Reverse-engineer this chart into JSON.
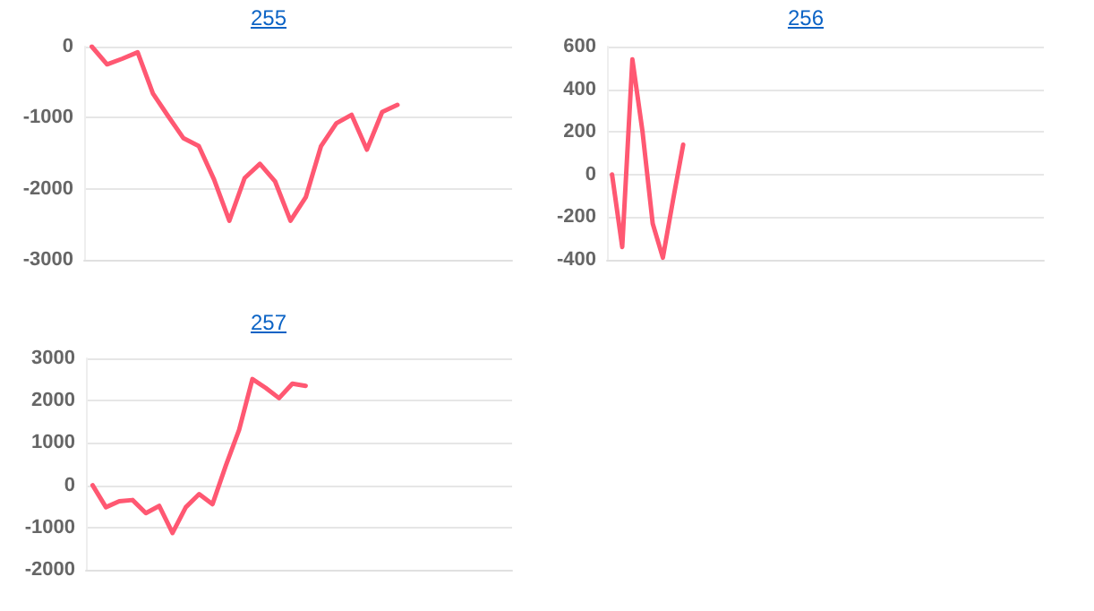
{
  "chart_data": [
    {
      "type": "line",
      "title": "255",
      "categories": [
        null,
        null,
        null,
        null,
        null,
        null,
        null,
        null,
        null,
        null,
        null,
        null,
        null,
        null,
        null,
        null,
        null,
        null,
        null,
        null,
        null,
        null,
        null,
        null,
        null,
        null,
        null,
        null
      ],
      "series": [
        {
          "color": "#ff5872",
          "values": [
            0,
            -250,
            -170,
            -80,
            -660,
            -980,
            -1290,
            -1400,
            -1870,
            -2450,
            -1850,
            -1650,
            -1900,
            -2450,
            -2120,
            -1400,
            -1080,
            -960,
            -1450,
            -920,
            -820,
            null,
            null,
            null,
            null,
            null,
            null,
            null
          ]
        }
      ],
      "ylim": [
        -3000,
        0
      ],
      "yticks": [
        -3000,
        -2000,
        -1000,
        0
      ],
      "grid": "y",
      "tick_labels": "y",
      "line_style": "solid"
    },
    {
      "type": "line",
      "title": "256",
      "categories": [
        null,
        null,
        null,
        null,
        null,
        null,
        null,
        null,
        null,
        null,
        null,
        null,
        null,
        null,
        null,
        null,
        null,
        null,
        null,
        null,
        null,
        null,
        null,
        null,
        null,
        null,
        null,
        null,
        null,
        null,
        null,
        null,
        null,
        null,
        null,
        null,
        null,
        null,
        null,
        null,
        null,
        null,
        null
      ],
      "series": [
        {
          "color": "#ff5872",
          "values": [
            0,
            -340,
            540,
            200,
            -230,
            -390,
            -120,
            140,
            null,
            null,
            null,
            null,
            null,
            null,
            null,
            null,
            null,
            null,
            null,
            null,
            null,
            null,
            null,
            null,
            null,
            null,
            null,
            null,
            null,
            null,
            null,
            null,
            null,
            null,
            null,
            null,
            null,
            null,
            null,
            null,
            null,
            null,
            null
          ]
        }
      ],
      "ylim": [
        -400,
        600
      ],
      "yticks": [
        -400,
        -200,
        0,
        200,
        400,
        600
      ],
      "grid": "y",
      "tick_labels": "y",
      "line_style": "solid"
    },
    {
      "type": "line",
      "title": "257",
      "categories": [
        null,
        null,
        null,
        null,
        null,
        null,
        null,
        null,
        null,
        null,
        null,
        null,
        null,
        null,
        null,
        null,
        null,
        null,
        null,
        null,
        null,
        null,
        null,
        null,
        null,
        null,
        null,
        null,
        null,
        null,
        null,
        null
      ],
      "series": [
        {
          "color": "#ff5872",
          "values": [
            0,
            -520,
            -380,
            -350,
            -660,
            -490,
            -1130,
            -520,
            -210,
            -450,
            460,
            1310,
            2510,
            2300,
            2060,
            2400,
            2350,
            null,
            null,
            null,
            null,
            null,
            null,
            null,
            null,
            null,
            null,
            null,
            null,
            null,
            null,
            null
          ]
        }
      ],
      "ylim": [
        -2000,
        3000
      ],
      "yticks": [
        -2000,
        -1000,
        0,
        1000,
        2000,
        3000
      ],
      "grid": "y",
      "tick_labels": "y",
      "line_style": "solid"
    }
  ]
}
